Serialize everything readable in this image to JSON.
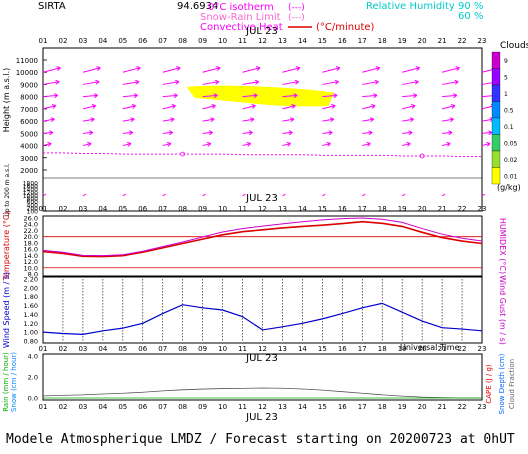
{
  "header": {
    "site": "SIRTA",
    "coord": "94.6934",
    "isotherm_label": "0°C isotherm",
    "snow_rain_label": "Snow-Rain Limit",
    "conv_heat_label": "Convective Heat",
    "conv_unit": "(°C/minute)",
    "rh_label": "Relative Humidity",
    "rh_90": "90 %",
    "rh_60": "60 %",
    "legend_dash": "(---)"
  },
  "hours": [
    "01",
    "02",
    "03",
    "04",
    "05",
    "06",
    "07",
    "08",
    "09",
    "10",
    "11",
    "12",
    "13",
    "14",
    "15",
    "16",
    "17",
    "18",
    "19",
    "20",
    "21",
    "22",
    "23"
  ],
  "date_label": "JUL 23",
  "universal_time": "Universal Time",
  "footer": "Modele Atmospherique LMDZ / Forecast starting on 20200723 at 0hUT",
  "colors": {
    "temperature": "#dd0000",
    "humidex": "#cc00cc",
    "wind": "#0000cc",
    "cloud": "#ffff00",
    "wind_barb": "#ff00ff",
    "grid": "#000000"
  },
  "panel_labels": {
    "height": "Height (m a.s.l.)",
    "up_to_200": "Up to 200 m a.s.l.",
    "temperature": "Temperature (°C)",
    "humidex": "HUMIDEX (°C)",
    "wind_speed": "Wind Speed (m / s)",
    "wind_gust": "Wind Gust (m / s)",
    "rain": "Rain (mm / hour)",
    "snow": "Snow (cm / hour)",
    "cape": "CAPE (J / g)",
    "snow_depth": "Snow Depth (cm)",
    "cloud_fraction": "Cloud Fraction"
  },
  "clouds_legend": {
    "title": "Clouds",
    "unit": "(g/kg)",
    "levels": [
      "9",
      "5",
      "1",
      "0.5",
      "0.1",
      "0.05",
      "0.02",
      "0.01"
    ],
    "colors": [
      "#cc00cc",
      "#9900ff",
      "#3333ff",
      "#0088ff",
      "#00bbff",
      "#33cc66",
      "#99dd33",
      "#ffff00"
    ]
  },
  "chart_data": [
    {
      "type": "scatter",
      "name": "height_wind_cloud",
      "y_ticks_upper": [
        "11000",
        "10000",
        "9000",
        "8000",
        "7000",
        "6000",
        "5000",
        "4000",
        "3000",
        "2000"
      ],
      "y_ticks_lower": [
        "1800",
        "1600",
        "1400",
        "1200",
        "1000",
        "800",
        "600",
        "400",
        "200",
        "100"
      ],
      "ylim": [
        0,
        11500
      ],
      "isotherm_m": [
        3400,
        3400,
        3350,
        3350,
        3300,
        3300,
        3300,
        3300,
        3300,
        3300,
        3250,
        3250,
        3250,
        3250,
        3200,
        3200,
        3200,
        3200,
        3150,
        3150,
        3150,
        3100,
        3100
      ],
      "isotherm_markers": [
        {
          "hour": 8,
          "value": 3300
        },
        {
          "hour": 20,
          "value": 3150
        }
      ],
      "cloud_patch": {
        "hour_start": 8.2,
        "hour_end": 15.6,
        "height_bottom": 7400,
        "height_top": 8800,
        "mixing_ratio_g_kg": 0.01
      }
    },
    {
      "type": "line",
      "name": "temperature_humidex",
      "y_ticks": [
        "26.0",
        "24.0",
        "22.0",
        "20.0",
        "18.0",
        "16.0",
        "14.0",
        "12.0",
        "10.0",
        "8.0"
      ],
      "ylim": [
        8,
        26
      ],
      "ref_lines": [
        10,
        20
      ],
      "series": [
        {
          "name": "Temperature",
          "values": [
            15.2,
            14.6,
            13.7,
            13.6,
            13.9,
            15.0,
            16.4,
            17.8,
            19.2,
            20.6,
            21.6,
            22.2,
            22.8,
            23.3,
            23.7,
            24.2,
            24.8,
            24.3,
            23.3,
            21.4,
            19.7,
            18.6,
            17.8
          ]
        },
        {
          "name": "HUMIDEX",
          "values": [
            15.6,
            15.0,
            14.0,
            13.9,
            14.2,
            15.3,
            16.8,
            18.3,
            19.9,
            21.5,
            22.6,
            23.4,
            24.1,
            24.8,
            25.4,
            25.8,
            26.0,
            25.6,
            24.6,
            22.6,
            20.8,
            19.5,
            18.6
          ]
        }
      ]
    },
    {
      "type": "line",
      "name": "wind",
      "y_ticks": [
        "2.20",
        "2.00",
        "1.80",
        "1.60",
        "1.40",
        "1.20",
        "1.00",
        "0.80"
      ],
      "ylim": [
        0.8,
        2.2
      ],
      "series": [
        {
          "name": "Wind Speed",
          "values": [
            1.0,
            0.97,
            0.95,
            1.03,
            1.09,
            1.2,
            1.42,
            1.62,
            1.55,
            1.5,
            1.35,
            1.05,
            1.12,
            1.2,
            1.3,
            1.42,
            1.55,
            1.65,
            1.45,
            1.25,
            1.1,
            1.07,
            1.03
          ]
        }
      ]
    },
    {
      "type": "area",
      "name": "precip",
      "y_ticks": [
        "4.0",
        "2.0",
        "0.0"
      ],
      "ylim": [
        0,
        4
      ],
      "series": [
        {
          "name": "CAPE",
          "values": [
            0.2,
            0.25,
            0.3,
            0.38,
            0.45,
            0.55,
            0.68,
            0.78,
            0.85,
            0.9,
            0.92,
            0.95,
            0.93,
            0.86,
            0.75,
            0.6,
            0.45,
            0.3,
            0.18,
            0.08,
            0.03,
            0.0,
            0.0
          ]
        }
      ]
    }
  ]
}
